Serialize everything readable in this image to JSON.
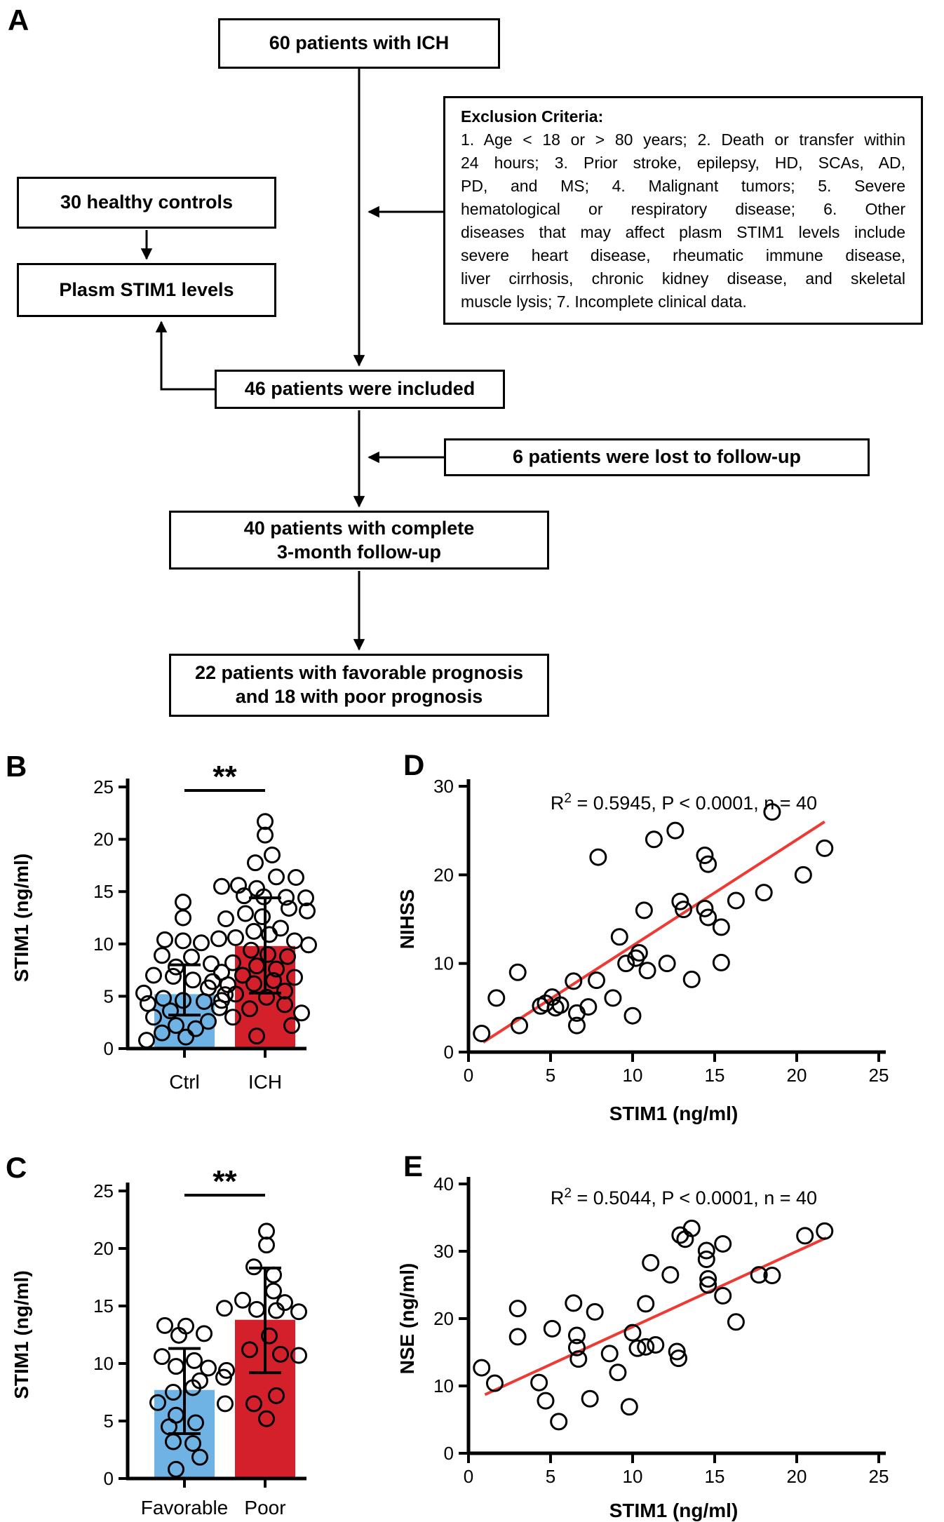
{
  "figure": {
    "panel_labels": {
      "a": "A",
      "b": "B",
      "c": "C",
      "d": "D",
      "e": "E"
    }
  },
  "flowchart": {
    "box_patients": "60 patients with ICH",
    "box_controls": "30 healthy controls",
    "box_plasm": "Plasm STIM1 levels",
    "box_included": "46 patients were included",
    "box_lost": "6 patients were lost to follow-up",
    "box_followup_lines": [
      "40 patients with complete",
      "3-month follow-up"
    ],
    "box_prognosis_lines": [
      "22 patients with favorable prognosis",
      "and 18 with poor prognosis"
    ],
    "exclusion_header": "Exclusion Criteria:",
    "exclusion_lines": [
      "1. Age < 18 or > 80 years; 2. Death or transfer within",
      "24 hours; 3. Prior stroke, epilepsy, HD, SCAs, AD,",
      "PD, and MS; 4. Malignant tumors; 5. Severe",
      "hematological or respiratory disease; 6. Other",
      "diseases that may affect plasm STIM1 levels include",
      "severe heart disease, rheumatic immune disease,",
      "liver cirrhosis, chronic kidney disease, and skeletal",
      "muscle lysis; 7. Incomplete clinical data."
    ]
  },
  "colors": {
    "bar_blue": "#6fb3e4",
    "bar_red": "#d4202a",
    "regression_red": "#ee3a34",
    "black": "#000000"
  },
  "chart_data": [
    {
      "id": "B",
      "type": "bar",
      "title": "",
      "ylabel": "STIM1 (ng/ml)",
      "ylim": [
        0,
        25
      ],
      "yticks": [
        0,
        5,
        10,
        15,
        20,
        25
      ],
      "categories": [
        "Ctrl",
        "ICH"
      ],
      "bar_means": [
        5.2,
        9.8
      ],
      "error_low": [
        3.2,
        5.3
      ],
      "error_high": [
        8.0,
        14.4
      ],
      "bar_color_keys": [
        "bar_blue",
        "bar_red"
      ],
      "significance": "**",
      "points": [
        [
          [
            -2,
            14.0
          ],
          [
            -2,
            12.5
          ],
          [
            -28,
            10.4
          ],
          [
            -2,
            10.3
          ],
          [
            24,
            10.1
          ],
          [
            -32,
            8.9
          ],
          [
            10,
            8.75
          ],
          [
            38,
            8.1
          ],
          [
            -12,
            7.8
          ],
          [
            -44,
            7.0
          ],
          [
            -16,
            6.9
          ],
          [
            12,
            6.55
          ],
          [
            40,
            6.4
          ],
          [
            62,
            6.1
          ],
          [
            34,
            5.8
          ],
          [
            -58,
            5.3
          ],
          [
            58,
            5.15
          ],
          [
            -30,
            4.8
          ],
          [
            -2,
            4.6
          ],
          [
            28,
            4.5
          ],
          [
            -52,
            4.3
          ],
          [
            50,
            3.9
          ],
          [
            -20,
            3.6
          ],
          [
            -44,
            3.0
          ],
          [
            34,
            2.6
          ],
          [
            -12,
            2.2
          ],
          [
            16,
            1.9
          ],
          [
            -32,
            1.5
          ],
          [
            2,
            1.1
          ],
          [
            -54,
            0.8
          ]
        ],
        [
          [
            0,
            21.7
          ],
          [
            0,
            20.4
          ],
          [
            10,
            18.5
          ],
          [
            -14,
            17.75
          ],
          [
            16,
            16.4
          ],
          [
            44,
            16.35
          ],
          [
            -38,
            15.6
          ],
          [
            -62,
            15.5
          ],
          [
            -12,
            15.3
          ],
          [
            -30,
            14.6
          ],
          [
            -2,
            14.5
          ],
          [
            30,
            14.45
          ],
          [
            58,
            14.4
          ],
          [
            34,
            13.4
          ],
          [
            60,
            13.15
          ],
          [
            -28,
            12.9
          ],
          [
            -4,
            12.6
          ],
          [
            -56,
            12.4
          ],
          [
            22,
            11.5
          ],
          [
            -16,
            11.2
          ],
          [
            6,
            10.9
          ],
          [
            -42,
            10.6
          ],
          [
            -66,
            10.5
          ],
          [
            42,
            10.3
          ],
          [
            62,
            9.9
          ],
          [
            -20,
            9.4
          ],
          [
            4,
            9.0
          ],
          [
            32,
            8.8
          ],
          [
            -46,
            8.2
          ],
          [
            -12,
            7.9
          ],
          [
            16,
            7.6
          ],
          [
            -62,
            7.3
          ],
          [
            -32,
            7.0
          ],
          [
            42,
            6.8
          ],
          [
            12,
            6.5
          ],
          [
            -16,
            6.2
          ],
          [
            28,
            5.5
          ],
          [
            -42,
            5.2
          ],
          [
            2,
            4.9
          ],
          [
            -62,
            4.6
          ],
          [
            28,
            4.2
          ],
          [
            -22,
            3.8
          ],
          [
            52,
            3.4
          ],
          [
            -46,
            3.0
          ],
          [
            38,
            2.2
          ],
          [
            -12,
            1.2
          ]
        ]
      ]
    },
    {
      "id": "C",
      "type": "bar",
      "title": "",
      "ylabel": "STIM1 (ng/ml)",
      "ylim": [
        0,
        25
      ],
      "yticks": [
        0,
        5,
        10,
        15,
        20,
        25
      ],
      "categories": [
        "Favorable",
        "Poor"
      ],
      "bar_means": [
        7.7,
        13.8
      ],
      "error_low": [
        3.9,
        9.2
      ],
      "error_high": [
        11.3,
        18.3
      ],
      "bar_color_keys": [
        "bar_blue",
        "bar_red"
      ],
      "significance": "**",
      "points": [
        [
          [
            -28,
            13.3
          ],
          [
            2,
            13.25
          ],
          [
            28,
            12.6
          ],
          [
            -8,
            12.45
          ],
          [
            -32,
            10.6
          ],
          [
            14,
            10.25
          ],
          [
            -12,
            9.75
          ],
          [
            34,
            9.6
          ],
          [
            60,
            9.4
          ],
          [
            56,
            8.8
          ],
          [
            22,
            8.5
          ],
          [
            12,
            7.9
          ],
          [
            -16,
            7.5
          ],
          [
            -38,
            6.6
          ],
          [
            58,
            6.5
          ],
          [
            -12,
            5.5
          ],
          [
            16,
            4.85
          ],
          [
            -22,
            4.5
          ],
          [
            -16,
            3.2
          ],
          [
            12,
            3.05
          ],
          [
            22,
            1.85
          ],
          [
            -12,
            0.8
          ]
        ],
        [
          [
            2,
            21.5
          ],
          [
            2,
            20.3
          ],
          [
            -16,
            18.4
          ],
          [
            12,
            17.7
          ],
          [
            12,
            16.3
          ],
          [
            -32,
            15.5
          ],
          [
            28,
            15.3
          ],
          [
            -58,
            14.8
          ],
          [
            -12,
            14.7
          ],
          [
            16,
            14.6
          ],
          [
            48,
            14.5
          ],
          [
            6,
            12.4
          ],
          [
            -22,
            11.2
          ],
          [
            22,
            10.8
          ],
          [
            48,
            10.7
          ],
          [
            16,
            7.2
          ],
          [
            -16,
            6.5
          ],
          [
            2,
            5.2
          ]
        ]
      ]
    },
    {
      "id": "D",
      "type": "scatter",
      "xlabel": "STIM1 (ng/ml)",
      "ylabel": "NIHSS",
      "xlim": [
        0,
        25
      ],
      "ylim": [
        0,
        30
      ],
      "xticks": [
        0,
        5,
        10,
        15,
        20,
        25
      ],
      "yticks": [
        0,
        10,
        20,
        30
      ],
      "annotation": {
        "pre": "R",
        "sup": "2",
        "post": " = 0.5945, P < 0.0001, n = 40"
      },
      "regression": {
        "x1": 0.9,
        "y1": 1.1,
        "x2": 21.7,
        "y2": 26.0
      },
      "points": [
        [
          0.8,
          2.1
        ],
        [
          1.7,
          6.1
        ],
        [
          3.0,
          9.0
        ],
        [
          3.1,
          3.0
        ],
        [
          4.4,
          5.2
        ],
        [
          4.7,
          5.5
        ],
        [
          5.1,
          6.2
        ],
        [
          5.3,
          5.0
        ],
        [
          5.6,
          5.3
        ],
        [
          6.4,
          8.0
        ],
        [
          6.6,
          4.4
        ],
        [
          6.6,
          3.0
        ],
        [
          7.3,
          5.1
        ],
        [
          7.8,
          8.1
        ],
        [
          7.9,
          22.0
        ],
        [
          8.8,
          6.1
        ],
        [
          9.2,
          13.0
        ],
        [
          9.6,
          10.0
        ],
        [
          10.0,
          4.1
        ],
        [
          10.2,
          10.6
        ],
        [
          10.4,
          11.2
        ],
        [
          10.7,
          16.0
        ],
        [
          10.9,
          9.2
        ],
        [
          11.3,
          24.0
        ],
        [
          12.1,
          10.0
        ],
        [
          12.6,
          25.0
        ],
        [
          12.9,
          17.0
        ],
        [
          13.1,
          16.1
        ],
        [
          13.6,
          8.2
        ],
        [
          14.4,
          22.2
        ],
        [
          14.6,
          21.2
        ],
        [
          14.4,
          16.2
        ],
        [
          14.6,
          15.2
        ],
        [
          15.4,
          14.1
        ],
        [
          15.4,
          10.1
        ],
        [
          16.3,
          17.1
        ],
        [
          18.0,
          18.0
        ],
        [
          18.5,
          27.1
        ],
        [
          20.4,
          20.0
        ],
        [
          21.7,
          23.0
        ]
      ]
    },
    {
      "id": "E",
      "type": "scatter",
      "xlabel": "STIM1 (ng/ml)",
      "ylabel": "NSE (ng/ml)",
      "xlim": [
        0,
        25
      ],
      "ylim": [
        0,
        40
      ],
      "xticks": [
        0,
        5,
        10,
        15,
        20,
        25
      ],
      "yticks": [
        0,
        10,
        20,
        30,
        40
      ],
      "annotation": {
        "pre": "R",
        "sup": "2",
        "post": " = 0.5044, P < 0.0001, n = 40"
      },
      "regression": {
        "x1": 1.0,
        "y1": 8.7,
        "x2": 21.8,
        "y2": 32.0
      },
      "points": [
        [
          0.8,
          12.7
        ],
        [
          1.6,
          10.4
        ],
        [
          3.0,
          21.5
        ],
        [
          3.0,
          17.3
        ],
        [
          4.3,
          10.5
        ],
        [
          4.7,
          7.8
        ],
        [
          5.1,
          18.5
        ],
        [
          5.5,
          4.7
        ],
        [
          6.4,
          22.3
        ],
        [
          6.6,
          17.5
        ],
        [
          6.6,
          15.7
        ],
        [
          6.7,
          14.0
        ],
        [
          7.4,
          8.1
        ],
        [
          7.7,
          21.0
        ],
        [
          8.6,
          14.8
        ],
        [
          9.1,
          12.0
        ],
        [
          10.0,
          17.9
        ],
        [
          9.8,
          6.9
        ],
        [
          10.3,
          15.6
        ],
        [
          10.8,
          15.8
        ],
        [
          11.4,
          16.1
        ],
        [
          10.8,
          22.2
        ],
        [
          11.1,
          28.3
        ],
        [
          12.3,
          26.5
        ],
        [
          12.7,
          15.1
        ],
        [
          12.8,
          14.1
        ],
        [
          13.2,
          31.8
        ],
        [
          13.6,
          33.4
        ],
        [
          12.9,
          32.4
        ],
        [
          14.5,
          30.1
        ],
        [
          14.5,
          28.8
        ],
        [
          14.6,
          25.9
        ],
        [
          14.6,
          25.0
        ],
        [
          15.5,
          31.1
        ],
        [
          15.5,
          23.4
        ],
        [
          16.3,
          19.5
        ],
        [
          17.7,
          26.5
        ],
        [
          18.5,
          26.4
        ],
        [
          20.5,
          32.3
        ],
        [
          21.7,
          33.0
        ]
      ]
    }
  ]
}
